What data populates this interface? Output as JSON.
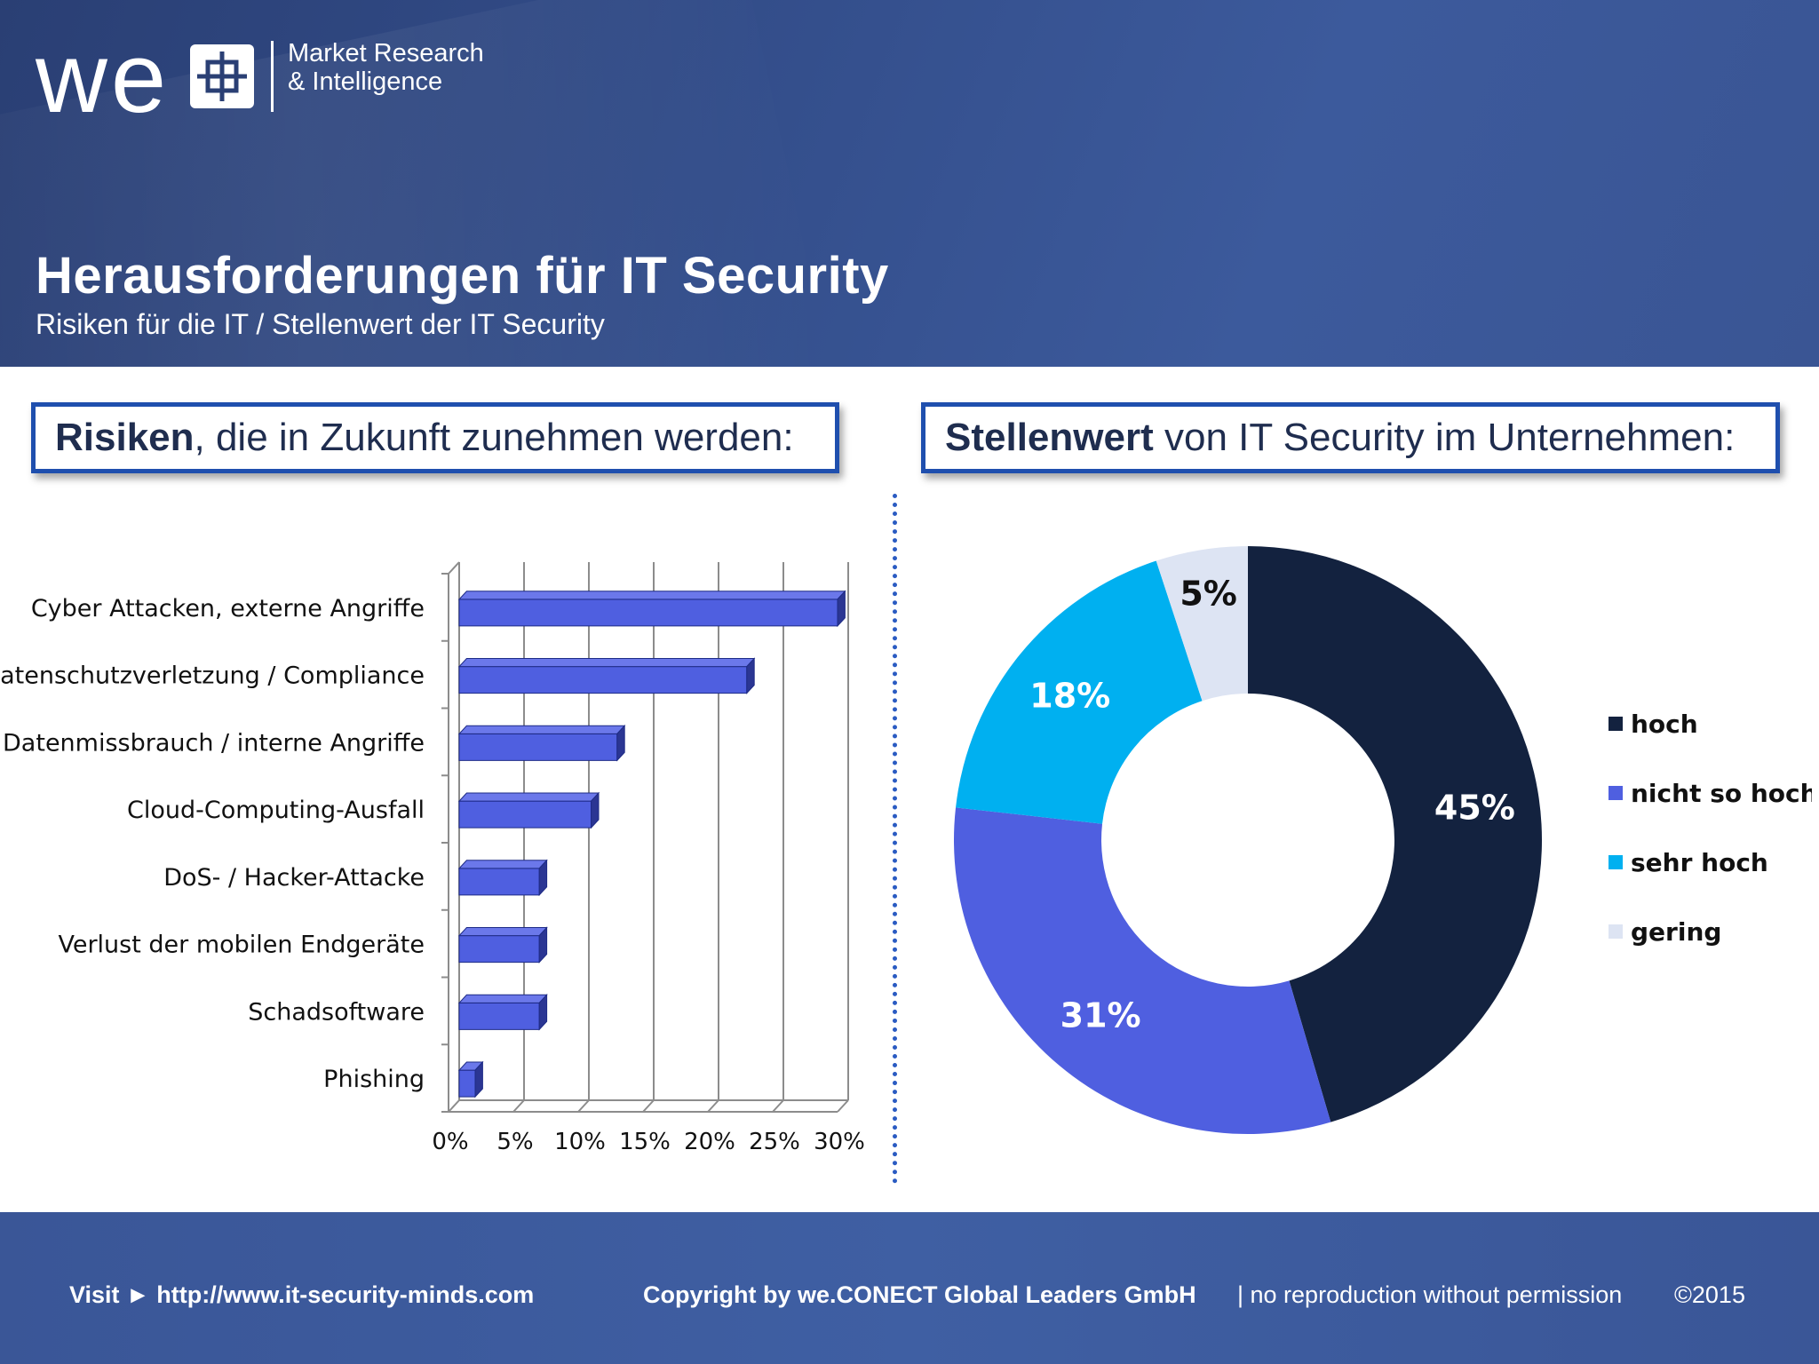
{
  "header": {
    "logo": {
      "wordmark": "we",
      "line1": "Market Research",
      "line2": "& Intelligence"
    },
    "title": "Herausforderungen für IT Security",
    "subtitle": "Risiken für die IT / Stellenwert der IT Security"
  },
  "left_panel": {
    "heading_bold": "Risiken",
    "heading_rest": ", die in Zukunft zunehmen werden:"
  },
  "right_panel": {
    "heading_bold": "Stellenwert",
    "heading_rest": " von IT Security im Unternehmen:"
  },
  "colors": {
    "bar": "#4f5fe0",
    "bar_top": "#6b78ea",
    "bar_side": "#2b3693",
    "hoch": "#13223f",
    "nicht_so_hoch": "#4f5fe0",
    "sehr_hoch": "#00b0f0",
    "gering": "#dde4f3",
    "divider": "#2a5bc2",
    "box_border": "#1f4fae"
  },
  "chart_data": [
    {
      "type": "bar",
      "orientation": "horizontal",
      "style": "3d",
      "title": "",
      "categories": [
        "Cyber Attacken, externe Angriffe",
        "Datenschutzverletzung / Compliance",
        "Datenmissbrauch / interne Angriffe",
        "Cloud-Computing-Ausfall",
        "DoS- / Hacker-Attacke",
        "Verlust der mobilen Endgeräte",
        "Schadsoftware",
        "Phishing"
      ],
      "values": [
        30,
        23,
        13,
        11,
        7,
        7,
        7,
        2
      ],
      "xlim": [
        0,
        30
      ],
      "xticks": [
        "0%",
        "5%",
        "10%",
        "15%",
        "20%",
        "25%",
        "30%"
      ],
      "unit": "%",
      "grid": true
    },
    {
      "type": "pie",
      "style": "donut",
      "title": "",
      "slices": [
        {
          "label": "hoch",
          "value": 45,
          "display": "45%"
        },
        {
          "label": "nicht so hoch",
          "value": 31,
          "display": "31%"
        },
        {
          "label": "sehr hoch",
          "value": 18,
          "display": "18%"
        },
        {
          "label": "gering",
          "value": 5,
          "display": "5%"
        }
      ],
      "legend": [
        "hoch",
        "nicht so hoch",
        "sehr hoch",
        "gering"
      ],
      "legend_position": "right"
    }
  ],
  "footer": {
    "visit": "Visit ► http://www.it-security-minds.com",
    "copyright": "Copyright by we.CONECT Global Leaders GmbH",
    "notice": "| no reproduction without permission",
    "year": "©2015"
  }
}
